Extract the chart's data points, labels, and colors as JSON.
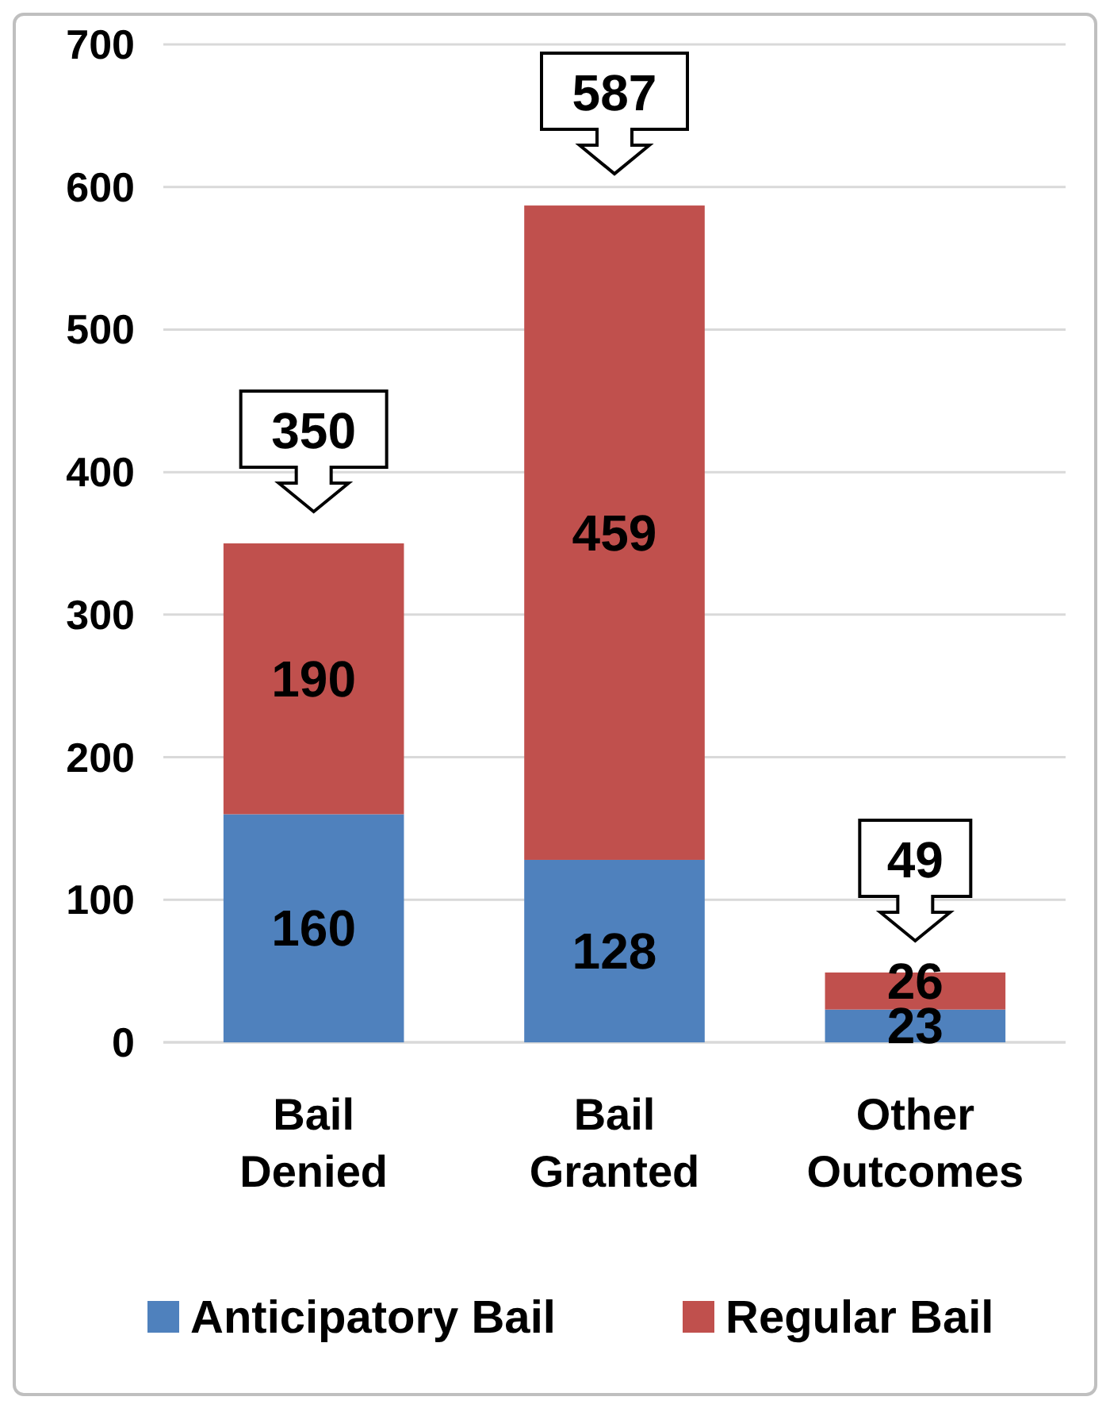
{
  "chart_data": {
    "type": "bar",
    "stacked": true,
    "categories": [
      "Bail Denied",
      "Bail Granted",
      "Other Outcomes"
    ],
    "series": [
      {
        "name": "Anticipatory Bail",
        "color": "#4f81bd",
        "values": [
          160,
          128,
          23
        ]
      },
      {
        "name": "Regular Bail",
        "color": "#c0504d",
        "values": [
          190,
          459,
          26
        ]
      }
    ],
    "totals": [
      "350",
      "587",
      "49"
    ],
    "ylim": [
      0,
      700
    ],
    "yticks": [
      0,
      100,
      200,
      300,
      400,
      500,
      600,
      700
    ],
    "grid": "y",
    "legend": "bottom",
    "data_labels": true
  }
}
